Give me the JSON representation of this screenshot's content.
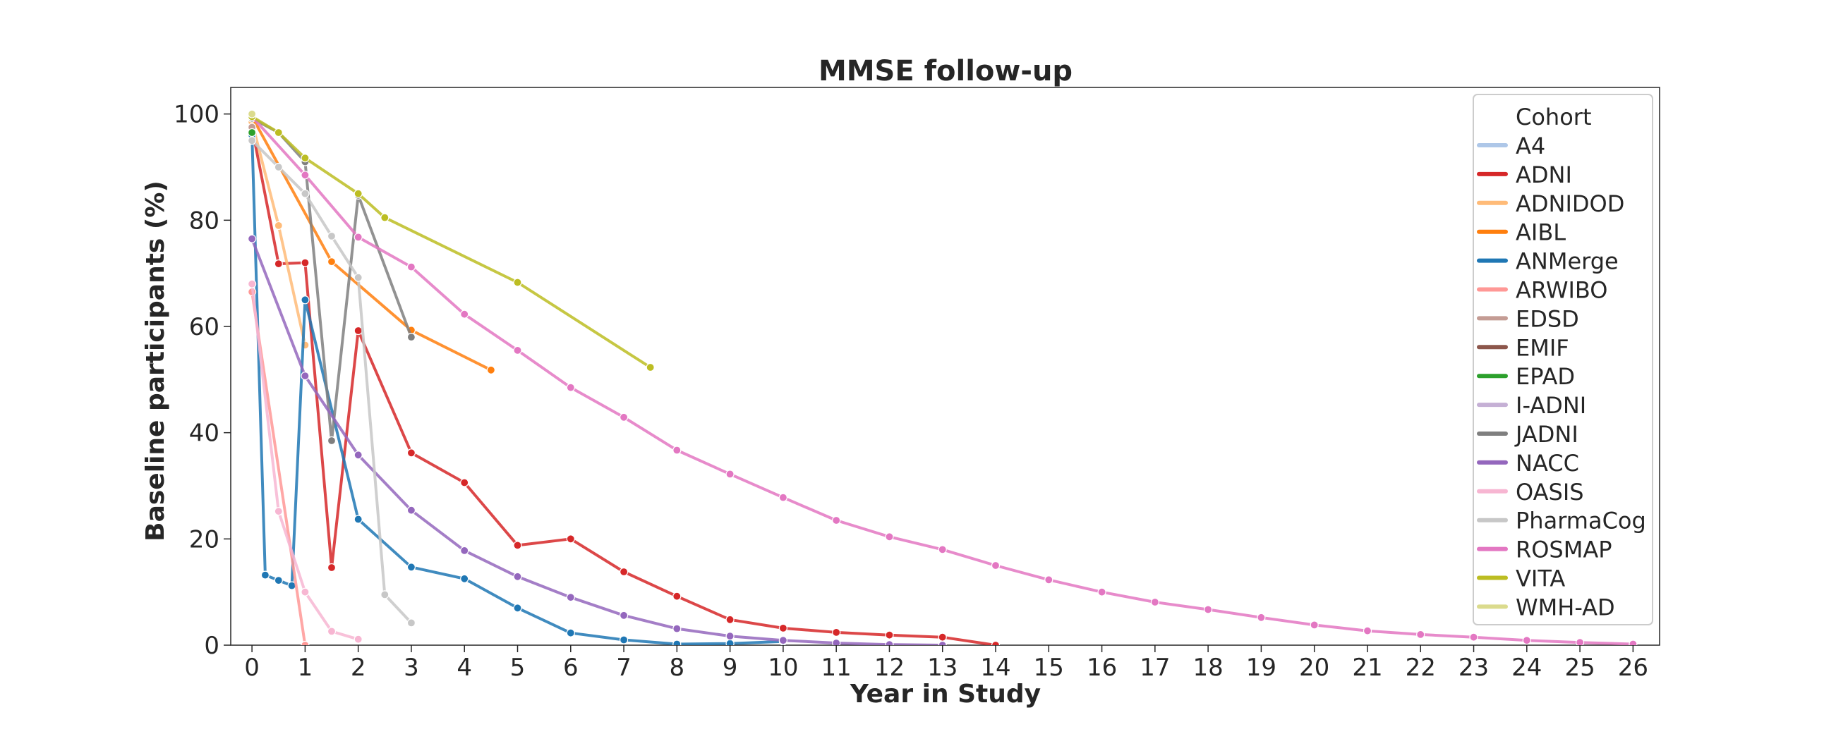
{
  "chart_data": {
    "type": "line",
    "title": "MMSE follow-up",
    "xlabel": "Year in Study",
    "ylabel": "Baseline participants (%)",
    "xlim": [
      -0.4,
      26.5
    ],
    "ylim": [
      0,
      105
    ],
    "xticks": [
      0,
      1,
      2,
      3,
      4,
      5,
      6,
      7,
      8,
      9,
      10,
      11,
      12,
      13,
      14,
      15,
      16,
      17,
      18,
      19,
      20,
      21,
      22,
      23,
      24,
      25,
      26
    ],
    "yticks": [
      0,
      20,
      40,
      60,
      80,
      100
    ],
    "grid": false,
    "legend": {
      "title": "Cohort",
      "position": "top-right"
    },
    "series": [
      {
        "name": "A4",
        "color": "#aec7e8",
        "points": []
      },
      {
        "name": "ADNI",
        "color": "#d62728",
        "points": [
          [
            0,
            97.5
          ],
          [
            0.5,
            71.8
          ],
          [
            1,
            72
          ],
          [
            1.5,
            14.6
          ],
          [
            2,
            59.2
          ],
          [
            3,
            36.2
          ],
          [
            4,
            30.6
          ],
          [
            5,
            18.8
          ],
          [
            6,
            20
          ],
          [
            7,
            13.8
          ],
          [
            8,
            9.2
          ],
          [
            9,
            4.8
          ],
          [
            10,
            3.2
          ],
          [
            11,
            2.4
          ],
          [
            12,
            1.9
          ],
          [
            13,
            1.5
          ],
          [
            14,
            0
          ]
        ]
      },
      {
        "name": "ADNIDOD",
        "color": "#ffbb78",
        "points": [
          [
            0,
            98.5
          ],
          [
            0.5,
            79
          ],
          [
            1,
            56.5
          ]
        ]
      },
      {
        "name": "AIBL",
        "color": "#ff7f0e",
        "points": [
          [
            0,
            99.5
          ],
          [
            1.5,
            72.2
          ],
          [
            3,
            59.3
          ],
          [
            4.5,
            51.8
          ]
        ]
      },
      {
        "name": "ANMerge",
        "color": "#1f77b4",
        "points": [
          [
            0,
            96
          ],
          [
            0.25,
            13.2
          ],
          [
            0.5,
            12.2
          ],
          [
            0.75,
            11.2
          ],
          [
            1,
            65
          ],
          [
            2,
            23.7
          ],
          [
            3,
            14.7
          ],
          [
            4,
            12.5
          ],
          [
            5,
            7
          ],
          [
            6,
            2.3
          ],
          [
            7,
            1
          ],
          [
            8,
            0.2
          ],
          [
            9,
            0.3
          ],
          [
            10,
            0.7
          ]
        ]
      },
      {
        "name": "ARWIBO",
        "color": "#ff9896",
        "points": [
          [
            0,
            66.5
          ],
          [
            1,
            0
          ]
        ]
      },
      {
        "name": "EDSD",
        "color": "#c49c94",
        "points": [
          [
            0,
            97.5
          ]
        ]
      },
      {
        "name": "EMIF",
        "color": "#8c564b",
        "points": []
      },
      {
        "name": "EPAD",
        "color": "#2ca02c",
        "points": [
          [
            0,
            96.5
          ]
        ]
      },
      {
        "name": "I-ADNI",
        "color": "#c5b0d5",
        "points": []
      },
      {
        "name": "JADNI",
        "color": "#7f7f7f",
        "points": [
          [
            0,
            99.2
          ],
          [
            0.5,
            96.5
          ],
          [
            1,
            91
          ],
          [
            1.5,
            38.5
          ],
          [
            2,
            84.7
          ],
          [
            3,
            58
          ]
        ]
      },
      {
        "name": "NACC",
        "color": "#9467bd",
        "points": [
          [
            0,
            76.5
          ],
          [
            1,
            50.7
          ],
          [
            2,
            35.8
          ],
          [
            3,
            25.4
          ],
          [
            4,
            17.8
          ],
          [
            5,
            12.9
          ],
          [
            6,
            9
          ],
          [
            7,
            5.6
          ],
          [
            8,
            3.1
          ],
          [
            9,
            1.7
          ],
          [
            10,
            0.9
          ],
          [
            11,
            0.4
          ],
          [
            12,
            0.1
          ],
          [
            13,
            0
          ]
        ]
      },
      {
        "name": "OASIS",
        "color": "#f7b6d2",
        "points": [
          [
            0,
            68
          ],
          [
            0.5,
            25.2
          ],
          [
            1,
            10
          ],
          [
            1.5,
            2.6
          ],
          [
            2,
            1.1
          ]
        ]
      },
      {
        "name": "PharmaCog",
        "color": "#c7c7c7",
        "points": [
          [
            0,
            95
          ],
          [
            0.5,
            90
          ],
          [
            1,
            85
          ],
          [
            1.5,
            77
          ],
          [
            2,
            69.2
          ],
          [
            2.5,
            9.5
          ],
          [
            3,
            4.2
          ]
        ]
      },
      {
        "name": "ROSMAP",
        "color": "#e377c2",
        "points": [
          [
            0,
            99.5
          ],
          [
            1,
            88.5
          ],
          [
            2,
            76.8
          ],
          [
            3,
            71.2
          ],
          [
            4,
            62.3
          ],
          [
            5,
            55.5
          ],
          [
            6,
            48.5
          ],
          [
            7,
            42.9
          ],
          [
            8,
            36.7
          ],
          [
            9,
            32.2
          ],
          [
            10,
            27.8
          ],
          [
            11,
            23.5
          ],
          [
            12,
            20.4
          ],
          [
            13,
            18
          ],
          [
            14,
            15
          ],
          [
            15,
            12.3
          ],
          [
            16,
            10
          ],
          [
            17,
            8.1
          ],
          [
            18,
            6.7
          ],
          [
            19,
            5.2
          ],
          [
            20,
            3.8
          ],
          [
            21,
            2.7
          ],
          [
            22,
            2
          ],
          [
            23,
            1.5
          ],
          [
            24,
            0.9
          ],
          [
            25,
            0.5
          ],
          [
            26,
            0.2
          ]
        ]
      },
      {
        "name": "VITA",
        "color": "#bcbd22",
        "points": [
          [
            0,
            99.5
          ],
          [
            0.5,
            96.5
          ],
          [
            1,
            91.7
          ],
          [
            2,
            85
          ],
          [
            2.5,
            80.5
          ],
          [
            5,
            68.3
          ],
          [
            7.5,
            52.3
          ]
        ]
      },
      {
        "name": "WMH-AD",
        "color": "#dbdb8d",
        "points": [
          [
            0,
            100
          ]
        ]
      }
    ]
  }
}
